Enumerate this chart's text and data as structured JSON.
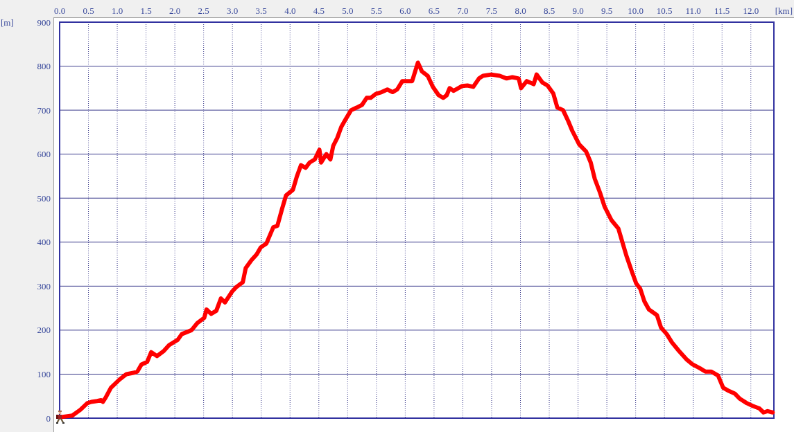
{
  "chart_data": {
    "type": "line",
    "xlabel": "[km]",
    "ylabel": "[m]",
    "x": [
      0,
      0.05,
      0.22,
      0.36,
      0.48,
      0.55,
      0.65,
      0.72,
      0.75,
      0.8,
      0.89,
      1.04,
      1.16,
      1.28,
      1.35,
      1.42,
      1.52,
      1.59,
      1.69,
      1.81,
      1.9,
      2.05,
      2.12,
      2.29,
      2.39,
      2.51,
      2.55,
      2.63,
      2.72,
      2.8,
      2.87,
      2.99,
      3.06,
      3.18,
      3.23,
      3.33,
      3.42,
      3.49,
      3.59,
      3.71,
      3.78,
      3.86,
      3.93,
      4.05,
      4.12,
      4.19,
      4.27,
      4.34,
      4.43,
      4.51,
      4.54,
      4.63,
      4.7,
      4.75,
      4.82,
      4.89,
      4.96,
      5.06,
      5.16,
      5.25,
      5.33,
      5.4,
      5.49,
      5.59,
      5.69,
      5.78,
      5.86,
      5.95,
      6.05,
      6.12,
      6.22,
      6.29,
      6.39,
      6.48,
      6.58,
      6.66,
      6.72,
      6.77,
      6.84,
      6.99,
      7.08,
      7.18,
      7.28,
      7.35,
      7.49,
      7.64,
      7.76,
      7.86,
      7.97,
      8.01,
      8.11,
      8.23,
      8.28,
      8.38,
      8.47,
      8.57,
      8.64,
      8.74,
      8.83,
      8.9,
      9.02,
      9.14,
      9.22,
      9.29,
      9.38,
      9.46,
      9.58,
      9.7,
      9.77,
      9.84,
      9.94,
      10.01,
      10.08,
      10.15,
      10.23,
      10.37,
      10.44,
      10.54,
      10.63,
      10.75,
      10.88,
      10.99,
      11.12,
      11.21,
      11.31,
      11.43,
      11.52,
      11.6,
      11.72,
      11.81,
      11.93,
      12.03,
      12.15,
      12.22,
      12.29,
      12.38
    ],
    "values": [
      2,
      3,
      6,
      19,
      34,
      37,
      39,
      41,
      37,
      47,
      69,
      88,
      100,
      103,
      106,
      122,
      128,
      150,
      141,
      153,
      166,
      178,
      191,
      200,
      216,
      228,
      247,
      237,
      244,
      272,
      263,
      287,
      297,
      309,
      341,
      359,
      372,
      388,
      397,
      434,
      437,
      475,
      506,
      519,
      550,
      575,
      569,
      581,
      588,
      610,
      581,
      600,
      588,
      619,
      637,
      662,
      678,
      700,
      706,
      712,
      728,
      728,
      737,
      741,
      747,
      741,
      747,
      766,
      766,
      766,
      808,
      788,
      778,
      753,
      734,
      728,
      734,
      750,
      744,
      755,
      756,
      753,
      772,
      778,
      781,
      778,
      772,
      775,
      772,
      750,
      766,
      759,
      781,
      763,
      756,
      738,
      706,
      700,
      675,
      653,
      622,
      606,
      581,
      544,
      513,
      481,
      450,
      431,
      400,
      369,
      331,
      306,
      294,
      266,
      247,
      234,
      206,
      191,
      172,
      153,
      134,
      122,
      113,
      106,
      106,
      97,
      69,
      63,
      56,
      44,
      34,
      28,
      22,
      13,
      16,
      13
    ],
    "color": "#ff0000",
    "line_style": "solid",
    "xlim": [
      0,
      12.4
    ],
    "xticks": [
      {
        "value": 0,
        "label": "0.0"
      },
      0.5,
      {
        "value": 1,
        "label": "1.0"
      },
      1.5,
      {
        "value": 2,
        "label": "2.0"
      },
      2.5,
      {
        "value": 3,
        "label": "3.0"
      },
      3.5,
      {
        "value": 4,
        "label": "4.0"
      },
      4.5,
      {
        "value": 5,
        "label": "5.0"
      },
      5.5,
      {
        "value": 6,
        "label": "6.0"
      },
      6.5,
      {
        "value": 7,
        "label": "7.0"
      },
      7.5,
      {
        "value": 8,
        "label": "8.0"
      },
      8.5,
      {
        "value": 9,
        "label": "9.0"
      },
      9.5,
      {
        "value": 10,
        "label": "10.0"
      },
      10.5,
      {
        "value": 11,
        "label": "11.0"
      },
      11.5,
      {
        "value": 12,
        "label": "12.0"
      }
    ],
    "ylim": [
      0,
      900
    ],
    "yticks": [
      0,
      100,
      200,
      300,
      400,
      500,
      600,
      700,
      800,
      900
    ],
    "grid": true
  }
}
